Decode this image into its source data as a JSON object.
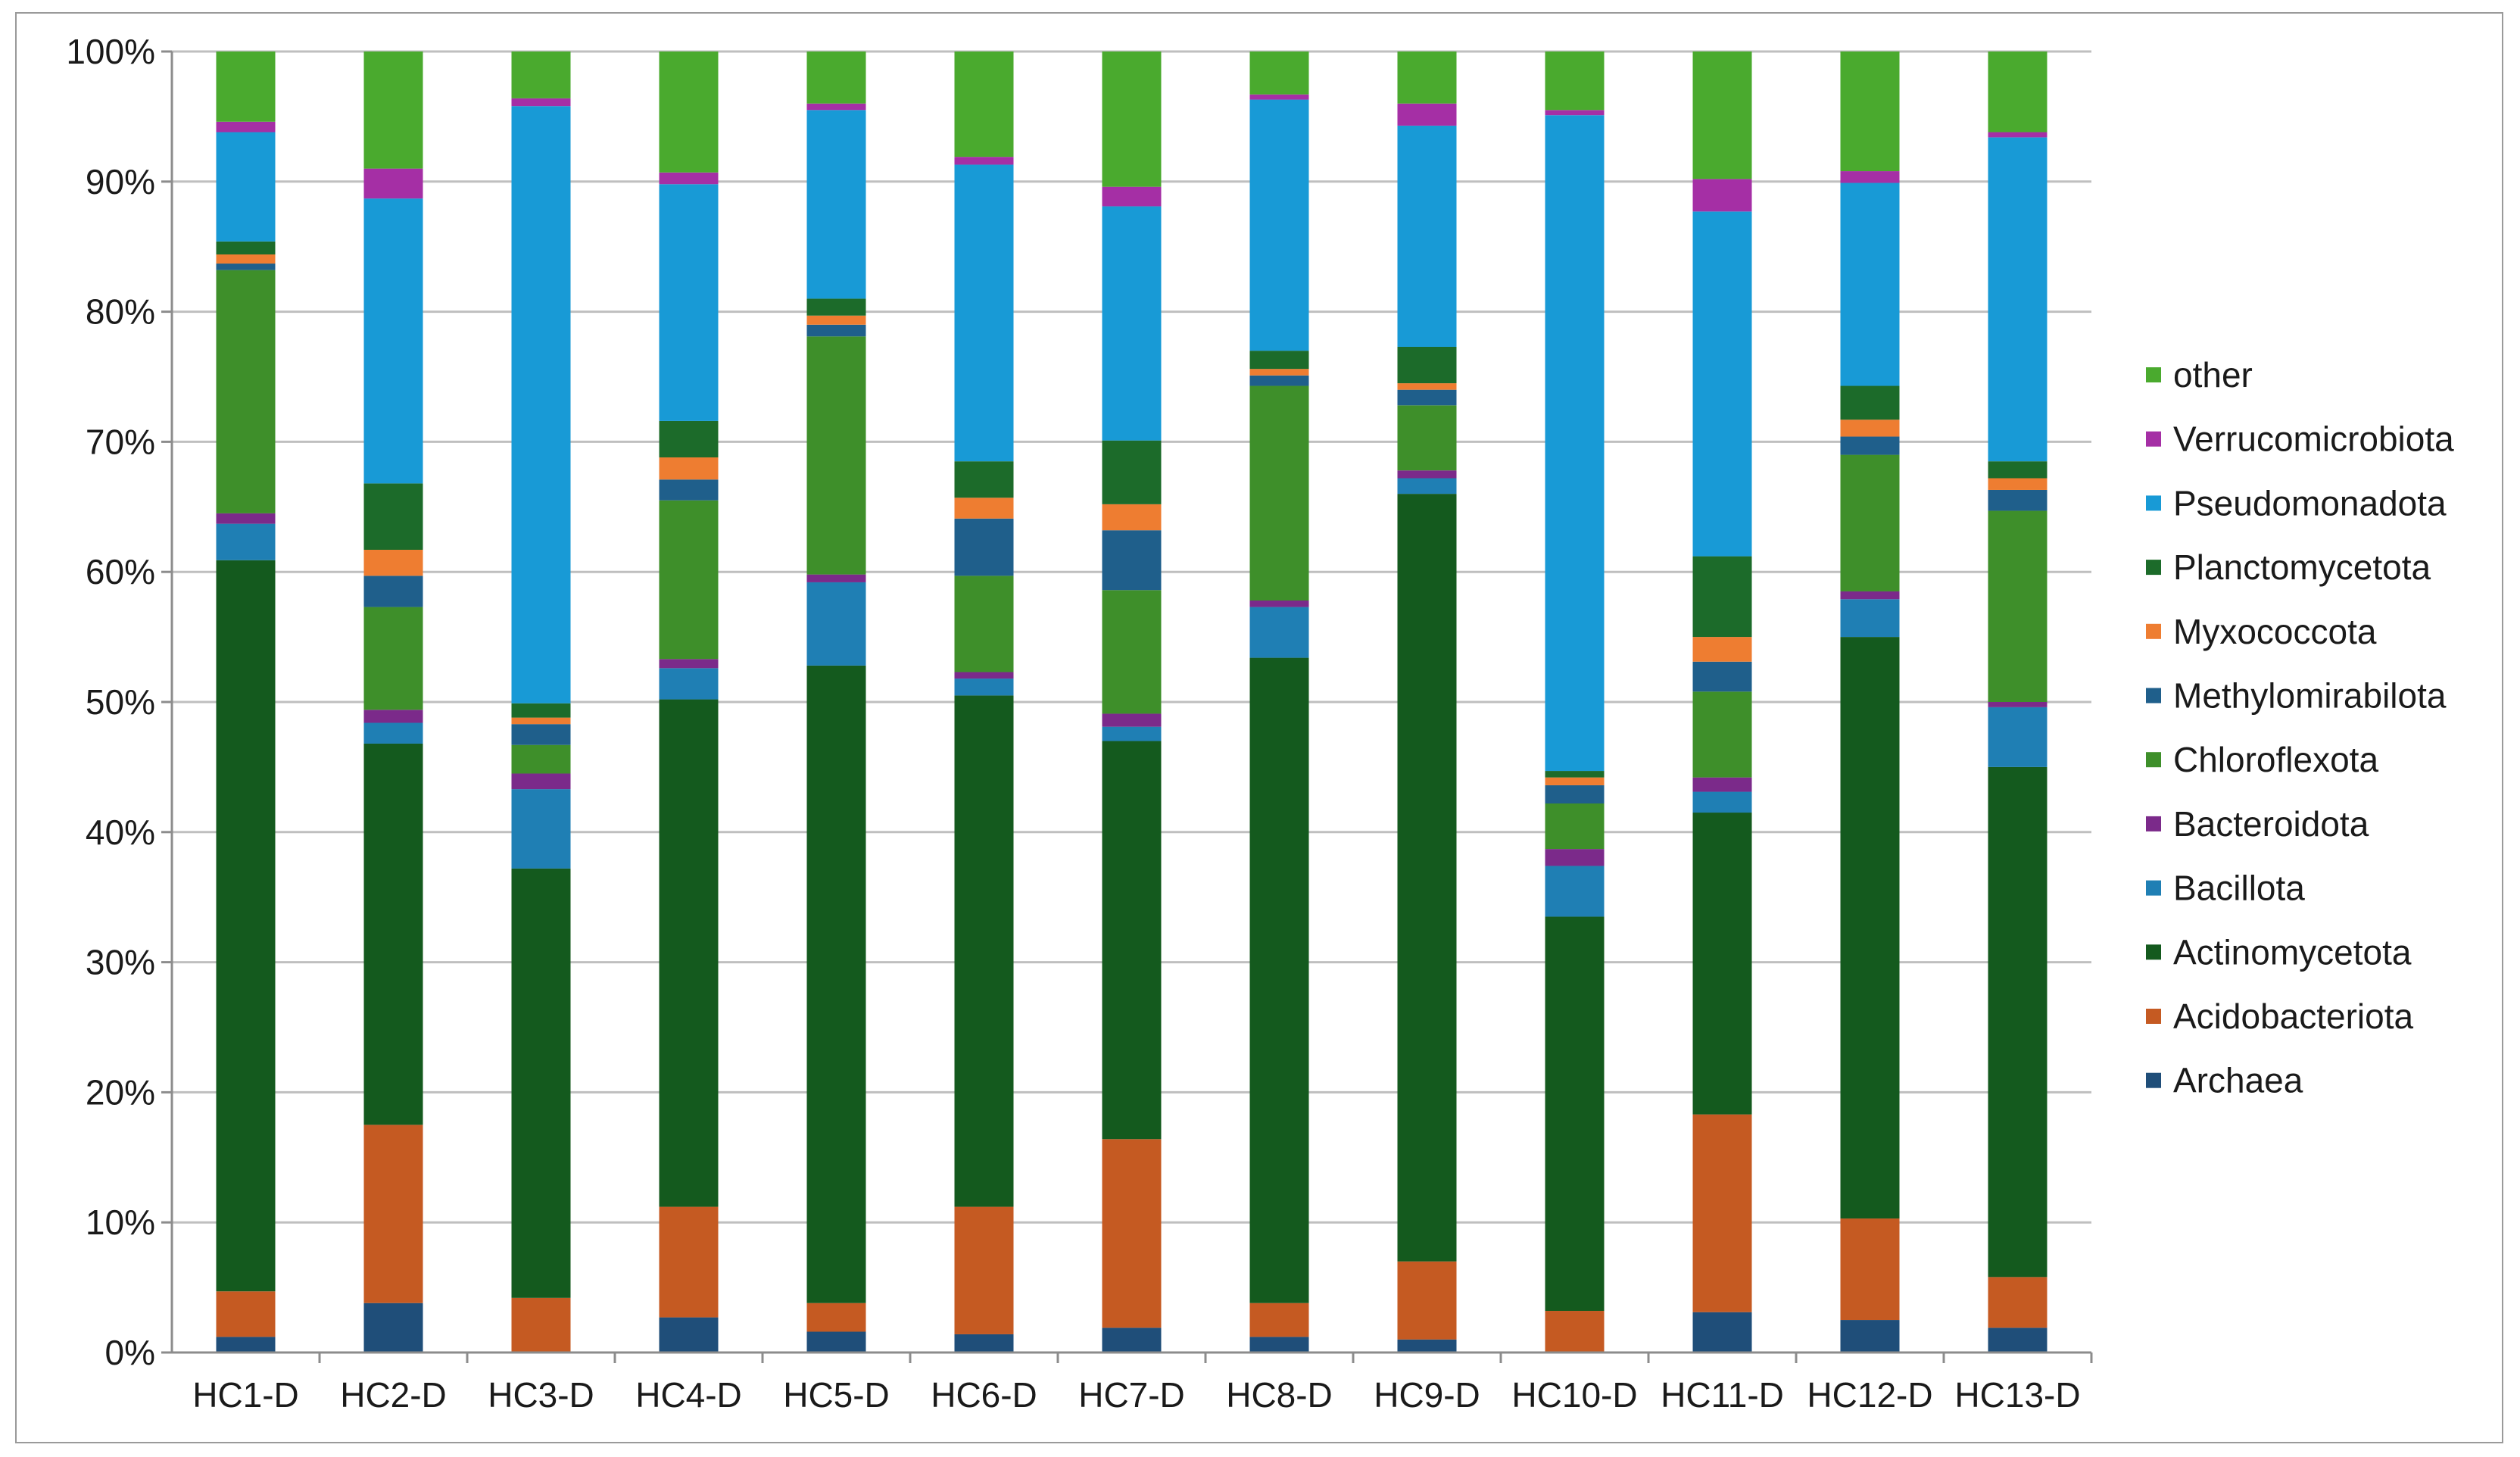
{
  "chart_data": {
    "type": "bar",
    "stacked": true,
    "percent": true,
    "title": "",
    "xlabel": "",
    "ylabel": "",
    "ylim": [
      0,
      100
    ],
    "yticks": [
      "0%",
      "10%",
      "20%",
      "30%",
      "40%",
      "50%",
      "60%",
      "70%",
      "80%",
      "90%",
      "100%"
    ],
    "grid": true,
    "legend_position": "right",
    "categories": [
      "HC1-D",
      "HC2-D",
      "HC3-D",
      "HC4-D",
      "HC5-D",
      "HC6-D",
      "HC7-D",
      "HC8-D",
      "HC9-D",
      "HC10-D",
      "HC11-D",
      "HC12-D",
      "HC13-D"
    ],
    "series": [
      {
        "name": "Archaea",
        "color": "#1f4e79",
        "values": [
          1.2,
          3.8,
          0.0,
          2.7,
          1.6,
          1.4,
          1.9,
          1.2,
          1.0,
          0.0,
          3.1,
          2.5,
          1.9
        ]
      },
      {
        "name": "Acidobacteriota",
        "color": "#c55a22",
        "values": [
          3.5,
          13.7,
          4.2,
          8.5,
          2.2,
          9.8,
          14.5,
          2.6,
          6.0,
          3.2,
          15.2,
          7.8,
          3.9
        ]
      },
      {
        "name": "Actinomycetota",
        "color": "#145a1e",
        "values": [
          56.2,
          29.3,
          33.0,
          39.0,
          49.0,
          39.3,
          30.6,
          49.6,
          59.0,
          30.3,
          23.2,
          44.7,
          39.2
        ]
      },
      {
        "name": "Bacillota",
        "color": "#1f7fb4",
        "values": [
          2.8,
          1.6,
          6.1,
          2.4,
          6.4,
          1.3,
          1.1,
          3.9,
          1.2,
          3.9,
          1.6,
          2.9,
          4.6
        ]
      },
      {
        "name": "Bacteroidota",
        "color": "#7b2a8a",
        "values": [
          0.8,
          1.0,
          1.2,
          0.7,
          0.6,
          0.5,
          1.0,
          0.5,
          0.6,
          1.3,
          1.1,
          0.6,
          0.4
        ]
      },
      {
        "name": "Chloroflexota",
        "color": "#3e8f2a",
        "values": [
          18.7,
          7.9,
          2.2,
          12.2,
          18.3,
          7.4,
          9.5,
          16.5,
          5.0,
          3.5,
          6.6,
          10.5,
          14.7
        ]
      },
      {
        "name": "Methylomirabilota",
        "color": "#1f5f8b",
        "values": [
          0.5,
          2.4,
          1.6,
          1.6,
          0.9,
          4.4,
          4.6,
          0.8,
          1.2,
          1.4,
          2.3,
          1.4,
          1.6
        ]
      },
      {
        "name": "Myxococcota",
        "color": "#ee7d31",
        "values": [
          0.7,
          2.0,
          0.5,
          1.7,
          0.7,
          1.6,
          2.0,
          0.5,
          0.5,
          0.6,
          1.9,
          1.3,
          0.9
        ]
      },
      {
        "name": "Planctomycetota",
        "color": "#1c6b2a",
        "values": [
          1.0,
          5.1,
          1.1,
          2.8,
          1.3,
          2.8,
          4.9,
          1.4,
          2.8,
          0.5,
          6.2,
          2.6,
          1.3
        ]
      },
      {
        "name": "Pseudomonadota",
        "color": "#189ad6",
        "values": [
          8.4,
          21.9,
          45.9,
          18.2,
          14.5,
          22.8,
          18.0,
          19.3,
          17.0,
          50.4,
          26.5,
          15.6,
          24.9
        ]
      },
      {
        "name": "Verrucomicrobiota",
        "color": "#a52fa5",
        "values": [
          0.8,
          2.3,
          0.6,
          0.9,
          0.5,
          0.6,
          1.5,
          0.4,
          1.7,
          0.4,
          2.5,
          0.9,
          0.4
        ]
      },
      {
        "name": "other",
        "color": "#4aaa2e",
        "values": [
          5.4,
          9.0,
          3.6,
          9.3,
          4.0,
          8.1,
          10.4,
          3.3,
          4.0,
          4.5,
          9.8,
          9.2,
          6.2
        ]
      }
    ]
  },
  "colors": {
    "gridline": "#bfbfbf",
    "axis": "#8c8c8c",
    "frame": "#9a9a9a"
  }
}
